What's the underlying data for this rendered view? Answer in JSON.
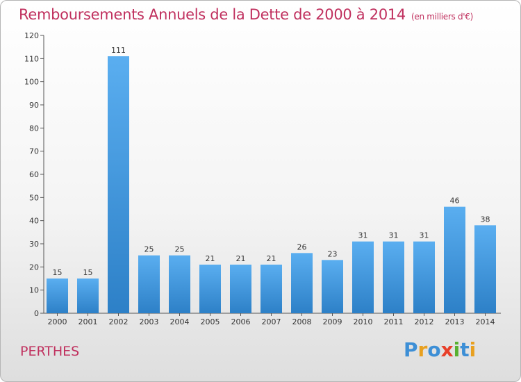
{
  "chart_data": {
    "type": "bar",
    "title": "Remboursements Annuels de la Dette de 2000 à 2014",
    "unit": "(en milliers d'€)",
    "categories": [
      "2000",
      "2001",
      "2002",
      "2003",
      "2004",
      "2005",
      "2006",
      "2007",
      "2008",
      "2009",
      "2010",
      "2011",
      "2012",
      "2013",
      "2014"
    ],
    "values": [
      15,
      15,
      111,
      25,
      25,
      21,
      21,
      21,
      26,
      23,
      31,
      31,
      31,
      46,
      38
    ],
    "ylim": [
      0,
      120
    ],
    "yticks": [
      0,
      10,
      20,
      30,
      40,
      50,
      60,
      70,
      80,
      90,
      100,
      110,
      120
    ],
    "grid": false,
    "bar_color": "#4fa3e0"
  },
  "footer": {
    "place": "PERTHES",
    "logo_text": "Proxiti",
    "logo_colors": [
      "#3d8fd6",
      "#e8a020",
      "#3d8fd6",
      "#e8402a",
      "#58b030",
      "#3d8fd6",
      "#e8a020"
    ]
  }
}
